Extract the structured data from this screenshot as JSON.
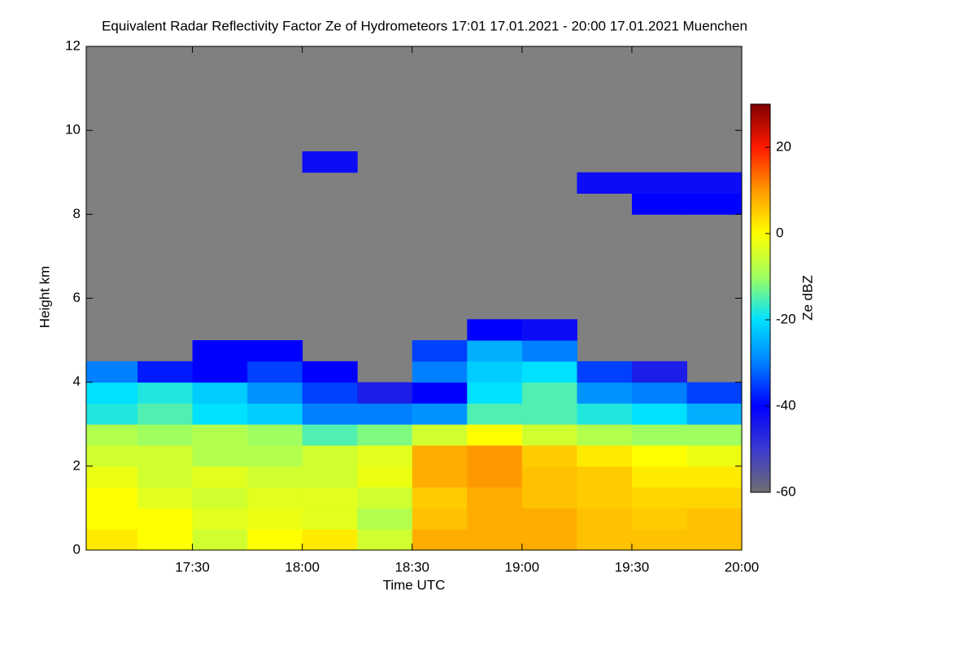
{
  "chart_data": {
    "type": "heatmap",
    "title": "Equivalent Radar Reflectivity Factor Ze of Hydrometeors   17:01 17.01.2021 - 20:00 17.01.2021 Muenchen",
    "x_label": "Time UTC",
    "y_label": "Height km",
    "colorbar_label": "Ze dBZ",
    "x_bins": [
      "17:01",
      "17:15",
      "17:30",
      "17:45",
      "18:00",
      "18:15",
      "18:30",
      "18:45",
      "19:00",
      "19:15",
      "19:30",
      "19:45",
      "20:00"
    ],
    "y_bins": [
      0,
      0.5,
      1,
      1.5,
      2,
      2.5,
      3,
      3.5,
      4,
      4.5,
      5,
      5.5,
      6,
      6.5,
      7,
      7.5,
      8,
      8.5,
      9,
      9.5
    ],
    "z": [
      [
        2,
        0,
        -5,
        0,
        2,
        -5,
        8,
        8,
        8,
        6,
        6,
        6
      ],
      [
        0,
        0,
        -3,
        -2,
        -3,
        -8,
        6,
        8,
        8,
        6,
        5,
        6
      ],
      [
        0,
        -3,
        -5,
        -3,
        -3,
        -5,
        5,
        8,
        6,
        5,
        4,
        4
      ],
      [
        -2,
        -5,
        -3,
        -5,
        -5,
        -2,
        8,
        10,
        6,
        5,
        2,
        2
      ],
      [
        -5,
        -5,
        -8,
        -8,
        -5,
        -3,
        8,
        10,
        5,
        2,
        0,
        -2
      ],
      [
        -8,
        -10,
        -8,
        -10,
        -15,
        -12,
        -5,
        0,
        -5,
        -8,
        -10,
        -10
      ],
      [
        -18,
        -15,
        -20,
        -22,
        -30,
        -30,
        -28,
        -15,
        -15,
        -18,
        -20,
        -25
      ],
      [
        -20,
        -18,
        -22,
        -28,
        -35,
        -45,
        -40,
        -20,
        -15,
        -28,
        -30,
        -35
      ],
      [
        -30,
        -38,
        -40,
        -35,
        -40,
        null,
        -30,
        -22,
        -20,
        -35,
        -45,
        null
      ],
      [
        null,
        null,
        -40,
        -40,
        null,
        null,
        -35,
        -25,
        -30,
        null,
        null,
        null
      ],
      [
        null,
        null,
        null,
        null,
        null,
        null,
        null,
        -40,
        -42,
        null,
        null,
        null
      ],
      [
        null,
        null,
        null,
        null,
        null,
        null,
        null,
        null,
        null,
        null,
        null,
        null
      ],
      [
        null,
        null,
        null,
        null,
        null,
        null,
        null,
        null,
        null,
        null,
        null,
        null
      ],
      [
        null,
        null,
        null,
        null,
        null,
        null,
        null,
        null,
        null,
        null,
        null,
        null
      ],
      [
        null,
        null,
        null,
        null,
        null,
        null,
        null,
        null,
        null,
        null,
        null,
        null
      ],
      [
        null,
        null,
        null,
        null,
        null,
        null,
        null,
        null,
        null,
        null,
        null,
        null
      ],
      [
        null,
        null,
        null,
        null,
        null,
        null,
        null,
        null,
        null,
        null,
        -40,
        -40
      ],
      [
        null,
        null,
        null,
        null,
        null,
        null,
        null,
        null,
        null,
        -42,
        -42,
        -42
      ],
      [
        null,
        null,
        null,
        null,
        -42,
        null,
        null,
        null,
        null,
        null,
        null,
        null
      ]
    ],
    "xlim": [
      "17:01",
      "20:00"
    ],
    "xticks": [
      "17:30",
      "18:00",
      "18:30",
      "19:00",
      "19:30",
      "20:00"
    ],
    "ylim": [
      0,
      12
    ],
    "yticks": [
      0,
      2,
      4,
      6,
      8,
      10,
      12
    ],
    "zlim": [
      -60,
      30
    ],
    "zticks": [
      -60,
      -40,
      -20,
      0,
      20
    ],
    "colors": [
      "#6e6e6e",
      "#3a3ad0",
      "#0000ff",
      "#0080ff",
      "#00e0ff",
      "#a0ff60",
      "#ffff00",
      "#ff9900",
      "#ff1a00",
      "#800000"
    ],
    "background": "#808080"
  }
}
